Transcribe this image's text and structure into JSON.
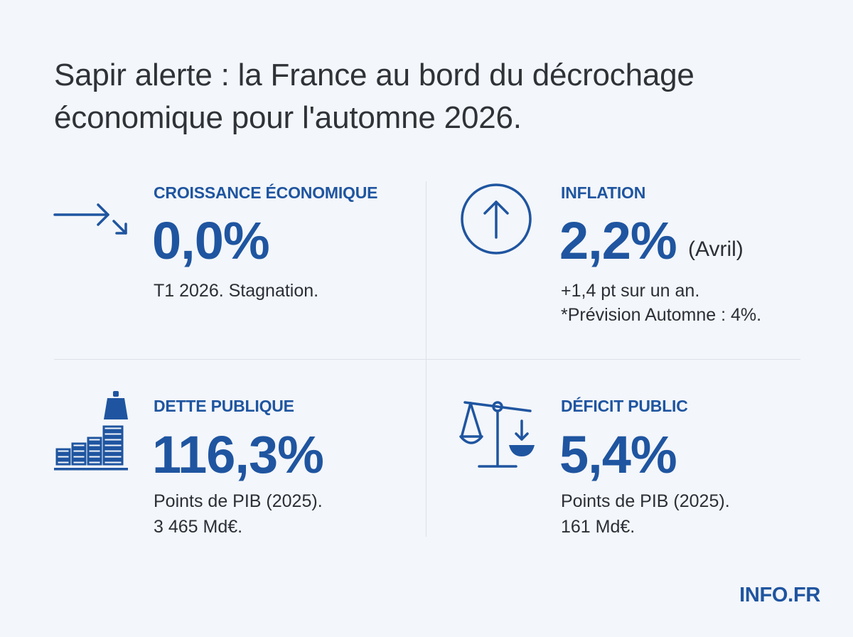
{
  "title_line1": "Sapir alerte : la France au bord du décrochage",
  "title_line2": "économique pour l'automne 2026.",
  "accent_color": "#1f55a0",
  "stats": {
    "growth": {
      "icon": "trend-arrow-icon",
      "label": "CROISSANCE ÉCONOMIQUE",
      "value": "0,0%",
      "note_line1": "T1 2026. Stagnation."
    },
    "inflation": {
      "icon": "circle-up-arrow-icon",
      "label": "INFLATION",
      "value": "2,2%",
      "suffix": "(Avril)",
      "note_line1": "+1,4 pt sur un an.",
      "note_line2": "*Prévision Automne : 4%."
    },
    "debt": {
      "icon": "stacked-coins-weight-icon",
      "label": "DETTE PUBLIQUE",
      "value": "116,3%",
      "note_line1": "Points de PIB (2025).",
      "note_line2": "3 465 Md€."
    },
    "deficit": {
      "icon": "scale-balance-icon",
      "label": "DÉFICIT PUBLIC",
      "value": "5,4%",
      "note_line1": "Points de PIB (2025).",
      "note_line2": "161 Md€."
    }
  },
  "brand": "INFO.FR"
}
